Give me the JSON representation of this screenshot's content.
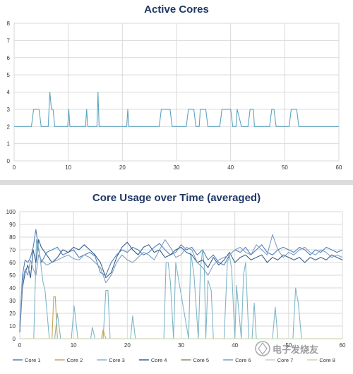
{
  "charts": {
    "active_cores": {
      "title": "Active Cores",
      "line_color": "#5ba3c0"
    },
    "core_usage": {
      "title": "Core Usage over Time (averaged)",
      "watermark": "电子发烧友"
    }
  },
  "chart_data": [
    {
      "type": "line",
      "title": "Active Cores",
      "xlabel": "",
      "ylabel": "",
      "xlim": [
        0,
        60
      ],
      "ylim": [
        0,
        8
      ],
      "xticks": [
        0,
        10,
        20,
        30,
        40,
        50,
        60
      ],
      "yticks": [
        0,
        1,
        2,
        3,
        4,
        5,
        6,
        7,
        8
      ],
      "grid": true,
      "series": [
        {
          "color": "#5ba3c0",
          "x": [
            0,
            3.2,
            3.6,
            4.6,
            5.0,
            6.3,
            6.6,
            6.9,
            7.2,
            7.5,
            9.9,
            10.1,
            10.3,
            13.2,
            13.4,
            13.6,
            15.3,
            15.5,
            15.7,
            20.8,
            21.0,
            21.2,
            26.8,
            27.2,
            28.8,
            29.2,
            31.8,
            32.2,
            33.2,
            33.6,
            34.2,
            34.4,
            35.4,
            35.8,
            36.0,
            38.0,
            38.4,
            40.0,
            40.4,
            41.0,
            41.2,
            42.0,
            42.2,
            43.2,
            43.6,
            44.2,
            44.4,
            47.2,
            47.6,
            48.0,
            48.4,
            50.8,
            51.2,
            52.2,
            52.6,
            60
          ],
          "y": [
            2,
            2,
            3,
            3,
            2,
            2,
            4,
            3,
            3,
            2,
            2,
            3,
            2,
            2,
            3,
            2,
            2,
            4,
            2,
            2,
            3,
            2,
            2,
            3,
            3,
            2,
            2,
            3,
            3,
            2,
            2,
            3,
            3,
            2,
            2,
            2,
            3,
            3,
            2,
            2,
            3,
            2,
            2,
            2,
            3,
            3,
            2,
            2,
            3,
            3,
            2,
            2,
            3,
            3,
            2,
            2
          ]
        }
      ]
    },
    {
      "type": "line",
      "title": "Core Usage over Time (averaged)",
      "xlabel": "",
      "ylabel": "",
      "xlim": [
        0,
        60
      ],
      "ylim": [
        0,
        100
      ],
      "xticks": [
        0,
        10,
        20,
        30,
        40,
        50,
        60
      ],
      "yticks": [
        0,
        10,
        20,
        30,
        40,
        50,
        60,
        70,
        80,
        90,
        100
      ],
      "grid": true,
      "legend": "bottom",
      "series": [
        {
          "name": "Core 1",
          "color": "#4f81bd",
          "x": [
            0,
            0.5,
            1,
            1.5,
            2,
            2.5,
            3,
            3.5,
            4,
            5,
            6,
            7,
            8,
            9,
            10,
            11,
            12,
            13,
            14,
            15,
            16,
            17,
            18,
            19,
            20,
            21,
            22,
            23,
            24,
            25,
            26,
            27,
            28,
            29,
            30,
            31,
            32,
            33,
            34,
            35,
            36,
            37,
            38,
            39,
            40,
            41,
            42,
            43,
            44,
            45,
            46,
            47,
            48,
            49,
            50,
            51,
            52,
            53,
            54,
            55,
            56,
            57,
            58,
            59,
            60
          ],
          "y": [
            10,
            50,
            62,
            60,
            64,
            72,
            86,
            70,
            60,
            68,
            70,
            72,
            66,
            68,
            70,
            64,
            66,
            68,
            65,
            52,
            50,
            60,
            66,
            70,
            68,
            72,
            70,
            66,
            68,
            72,
            75,
            70,
            66,
            68,
            74,
            70,
            72,
            66,
            70,
            62,
            66,
            60,
            58,
            66,
            70,
            68,
            72,
            66,
            70,
            74,
            68,
            66,
            70,
            72,
            70,
            68,
            72,
            70,
            66,
            70,
            68,
            72,
            70,
            68,
            70
          ]
        },
        {
          "name": "Core 2",
          "color": "#c0a85a",
          "x": [
            0,
            6.0,
            6.3,
            6.6,
            7.0,
            15.2,
            15.5,
            16.0,
            60
          ],
          "y": [
            0,
            0,
            33,
            33,
            0,
            0,
            7,
            0,
            0
          ]
        },
        {
          "name": "Core 3",
          "color": "#7fb6c8",
          "x": [
            0,
            2.6,
            3.1,
            3.6,
            4.3,
            4.7,
            5.5,
            6.5,
            7.0,
            7.6,
            9.6,
            10.1,
            10.8,
            13.2,
            13.5,
            14.0,
            15.5,
            16.0,
            16.4,
            16.8,
            20.6,
            21.0,
            21.5,
            26.8,
            27.2,
            27.6,
            28.0,
            28.6,
            29.0,
            29.4,
            31.4,
            31.8,
            32.4,
            33.2,
            33.6,
            34.0,
            34.3,
            34.6,
            35.0,
            35.6,
            36.0,
            38.0,
            38.6,
            39.0,
            39.4,
            40.0,
            40.3,
            41.2,
            41.6,
            42.0,
            42.6,
            43.2,
            43.6,
            44.0,
            47.0,
            47.5,
            48.0,
            48.5,
            50.8,
            51.3,
            51.8,
            52.4,
            60
          ],
          "y": [
            0,
            0,
            78,
            70,
            45,
            38,
            0,
            0,
            20,
            0,
            0,
            26,
            0,
            0,
            9,
            0,
            0,
            38,
            38,
            0,
            0,
            18,
            0,
            0,
            60,
            60,
            45,
            0,
            60,
            50,
            0,
            68,
            50,
            0,
            55,
            70,
            58,
            0,
            46,
            38,
            0,
            0,
            60,
            65,
            55,
            0,
            42,
            0,
            50,
            60,
            0,
            0,
            28,
            0,
            0,
            25,
            0,
            0,
            0,
            40,
            28,
            0,
            0
          ]
        },
        {
          "name": "Core 4",
          "color": "#3a5f8a",
          "x": [
            0,
            0.5,
            1,
            1.5,
            2,
            2.5,
            3,
            3.5,
            4,
            5,
            6,
            7,
            8,
            9,
            10,
            11,
            12,
            13,
            14,
            15,
            16,
            17,
            18,
            19,
            20,
            21,
            22,
            23,
            24,
            25,
            26,
            27,
            28,
            29,
            30,
            31,
            32,
            33,
            34,
            35,
            36,
            37,
            38,
            39,
            40,
            41,
            42,
            43,
            44,
            45,
            46,
            47,
            48,
            49,
            50,
            51,
            52,
            53,
            54,
            55,
            56,
            57,
            58,
            59,
            60
          ],
          "y": [
            5,
            40,
            52,
            58,
            48,
            70,
            60,
            78,
            72,
            66,
            60,
            64,
            70,
            68,
            72,
            70,
            74,
            70,
            66,
            60,
            48,
            52,
            64,
            72,
            76,
            70,
            66,
            72,
            74,
            68,
            70,
            64,
            66,
            70,
            72,
            68,
            66,
            60,
            62,
            56,
            64,
            58,
            62,
            68,
            60,
            64,
            66,
            62,
            64,
            66,
            60,
            64,
            62,
            66,
            64,
            62,
            64,
            60,
            64,
            62,
            64,
            62,
            66,
            64,
            62
          ]
        },
        {
          "name": "Core 5",
          "color": "#8b8f6a",
          "x": [
            0,
            60
          ],
          "y": [
            0,
            0
          ]
        },
        {
          "name": "Core 6",
          "color": "#7f9fc2",
          "x": [
            0,
            0.5,
            1,
            1.5,
            2,
            2.5,
            3,
            3.5,
            4,
            5,
            6,
            7,
            8,
            9,
            10,
            11,
            12,
            13,
            14,
            15,
            16,
            17,
            18,
            19,
            20,
            21,
            22,
            23,
            24,
            25,
            26,
            27,
            28,
            29,
            30,
            31,
            32,
            33,
            34,
            35,
            36,
            37,
            38,
            39,
            40,
            41,
            42,
            43,
            44,
            45,
            46,
            47,
            48,
            49,
            50,
            51,
            52,
            53,
            54,
            55,
            56,
            57,
            58,
            59,
            60
          ],
          "y": [
            8,
            45,
            55,
            50,
            62,
            55,
            50,
            66,
            62,
            58,
            60,
            62,
            64,
            66,
            63,
            62,
            66,
            64,
            60,
            56,
            44,
            50,
            60,
            66,
            62,
            60,
            64,
            68,
            66,
            62,
            70,
            78,
            72,
            64,
            66,
            72,
            70,
            60,
            56,
            50,
            58,
            62,
            64,
            66,
            70,
            72,
            68,
            66,
            74,
            70,
            66,
            82,
            70,
            64,
            68,
            66,
            70,
            72,
            68,
            66,
            70,
            68,
            64,
            66,
            64
          ]
        },
        {
          "name": "Core 7",
          "color": "#b9cfe3",
          "x": [
            0,
            60
          ],
          "y": [
            0,
            0
          ]
        },
        {
          "name": "Core 8",
          "color": "#c9d6a6",
          "x": [
            0,
            60
          ],
          "y": [
            0,
            0
          ]
        }
      ]
    }
  ]
}
